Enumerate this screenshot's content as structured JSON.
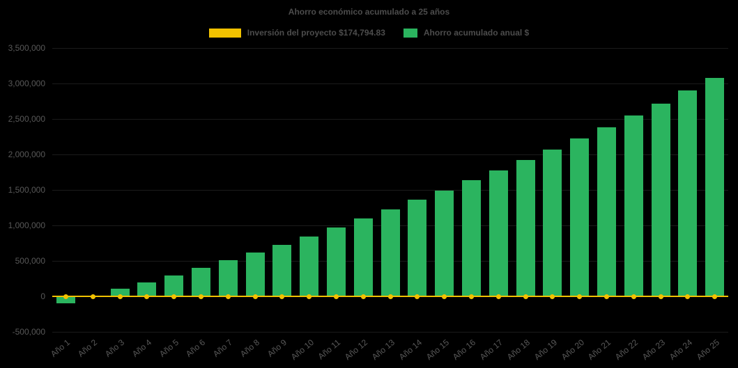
{
  "chart": {
    "title": "Ahorro económico acumulado a 25 años",
    "legend": [
      {
        "label": "Inversión del proyecto $174,794.83",
        "color": "#F2C200",
        "type": "line"
      },
      {
        "label": "Ahorro acumulado anual $",
        "color": "#2BB45F",
        "type": "bar"
      }
    ]
  },
  "chart_data": {
    "type": "bar",
    "title": "Ahorro económico acumulado a 25 años",
    "categories": [
      "Año 1",
      "Año 2",
      "Año 3",
      "Año 4",
      "Año 5",
      "Año 6",
      "Año 7",
      "Año 8",
      "Año 9",
      "Año 10",
      "Año 11",
      "Año 12",
      "Año 13",
      "Año 14",
      "Año 15",
      "Año 16",
      "Año 17",
      "Año 18",
      "Año 19",
      "Año 20",
      "Año 21",
      "Año 22",
      "Año 23",
      "Año 24",
      "Año 25"
    ],
    "series": [
      {
        "name": "Ahorro acumulado anual $",
        "type": "bar",
        "color": "#2BB45F",
        "values": [
          -100000,
          10000,
          110000,
          200000,
          295000,
          400000,
          505000,
          615000,
          730000,
          845000,
          970000,
          1095000,
          1230000,
          1360000,
          1495000,
          1635000,
          1770000,
          1920000,
          2065000,
          2225000,
          2380000,
          2550000,
          2715000,
          2900000,
          3080000
        ]
      },
      {
        "name": "Inversión del proyecto $174,794.83",
        "type": "line",
        "color": "#F2C200",
        "investment_amount": 174794.83,
        "plotted_value": 0
      }
    ],
    "ylim": [
      -500000,
      3500000
    ],
    "y_ticks": [
      {
        "value": -500000,
        "label": "-500,000"
      },
      {
        "value": 0,
        "label": "0"
      },
      {
        "value": 500000,
        "label": "500,000"
      },
      {
        "value": 1000000,
        "label": "1,000,000"
      },
      {
        "value": 1500000,
        "label": "1,500,000"
      },
      {
        "value": 2000000,
        "label": "2,000,000"
      },
      {
        "value": 2500000,
        "label": "2,500,000"
      },
      {
        "value": 3000000,
        "label": "3,000,000"
      },
      {
        "value": 3500000,
        "label": "3,500,000"
      }
    ],
    "grid": true,
    "legend_position": "top",
    "xlabel": "",
    "ylabel": "",
    "background_color": "#000000",
    "text_color": "#585858"
  }
}
